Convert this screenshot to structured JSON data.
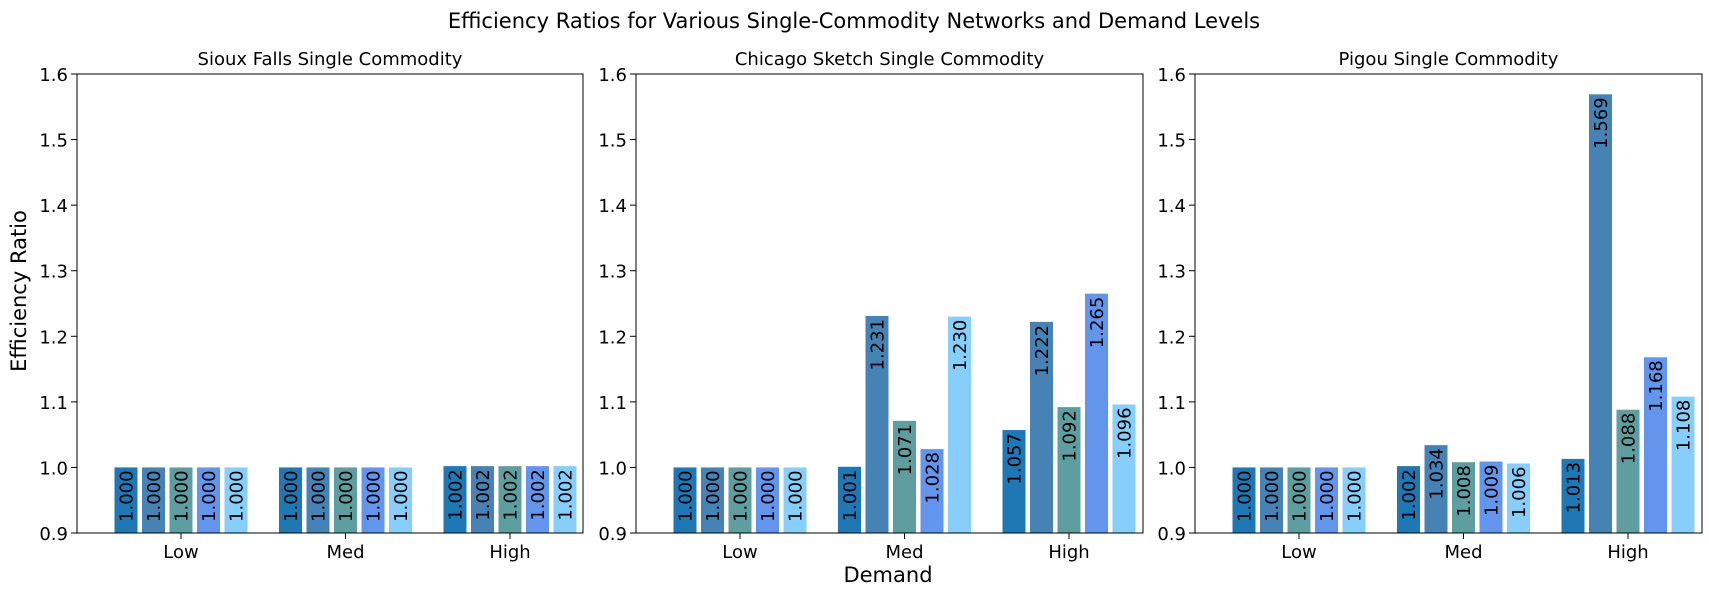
{
  "figure": {
    "suptitle": "Efficiency Ratios for Various Single-Commodity Networks and Demand Levels",
    "shared_xlabel": "Demand",
    "shared_ylabel": "Efficiency Ratio"
  },
  "colors": {
    "series": [
      "#1f77b4",
      "#4682b4",
      "#5f9ea0",
      "#6495ed",
      "#87cefa"
    ]
  },
  "chart_data": [
    {
      "type": "bar",
      "title": "Sioux Falls Single Commodity",
      "xlabel": "",
      "ylabel": "Efficiency Ratio",
      "ylim": [
        0.9,
        1.6
      ],
      "yticks": [
        0.9,
        1.0,
        1.1,
        1.2,
        1.3,
        1.4,
        1.5,
        1.6
      ],
      "categories": [
        "Low",
        "Med",
        "High"
      ],
      "series": [
        {
          "values": [
            1.0,
            1.0,
            1.002
          ]
        },
        {
          "values": [
            1.0,
            1.0,
            1.002
          ]
        },
        {
          "values": [
            1.0,
            1.0,
            1.002
          ]
        },
        {
          "values": [
            1.0,
            1.0,
            1.002
          ]
        },
        {
          "values": [
            1.0,
            1.0,
            1.002
          ]
        }
      ]
    },
    {
      "type": "bar",
      "title": "Chicago Sketch Single Commodity",
      "xlabel": "Demand",
      "ylabel": "",
      "ylim": [
        0.9,
        1.6
      ],
      "yticks": [
        0.9,
        1.0,
        1.1,
        1.2,
        1.3,
        1.4,
        1.5,
        1.6
      ],
      "categories": [
        "Low",
        "Med",
        "High"
      ],
      "series": [
        {
          "values": [
            1.0,
            1.001,
            1.057
          ]
        },
        {
          "values": [
            1.0,
            1.231,
            1.222
          ]
        },
        {
          "values": [
            1.0,
            1.071,
            1.092
          ]
        },
        {
          "values": [
            1.0,
            1.028,
            1.265
          ]
        },
        {
          "values": [
            1.0,
            1.23,
            1.096
          ]
        }
      ]
    },
    {
      "type": "bar",
      "title": "Pigou Single Commodity",
      "xlabel": "",
      "ylabel": "",
      "ylim": [
        0.9,
        1.6
      ],
      "yticks": [
        0.9,
        1.0,
        1.1,
        1.2,
        1.3,
        1.4,
        1.5,
        1.6
      ],
      "categories": [
        "Low",
        "Med",
        "High"
      ],
      "series": [
        {
          "values": [
            1.0,
            1.002,
            1.013
          ]
        },
        {
          "values": [
            1.0,
            1.034,
            1.569
          ]
        },
        {
          "values": [
            1.0,
            1.008,
            1.088
          ]
        },
        {
          "values": [
            1.0,
            1.009,
            1.168
          ]
        },
        {
          "values": [
            1.0,
            1.006,
            1.108
          ]
        }
      ]
    }
  ]
}
